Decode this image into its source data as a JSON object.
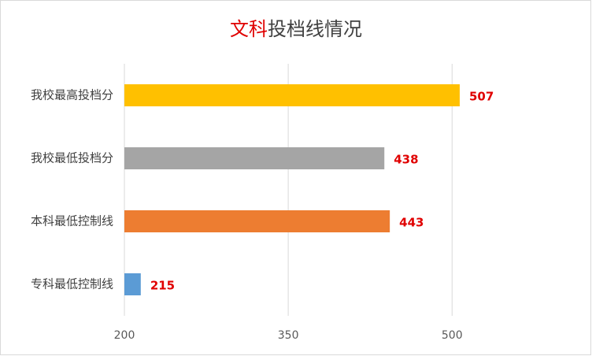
{
  "chart_data": {
    "type": "hbar",
    "title": [
      {
        "text": "文科",
        "color": "#e00000"
      },
      {
        "text": "投档线情况",
        "color": "#404040"
      }
    ],
    "categories": [
      "我校最高投档分",
      "我校最低投档分",
      "本科最低控制线",
      "专科最低控制线"
    ],
    "values": [
      507,
      438,
      443,
      215
    ],
    "colors": [
      "#ffc000",
      "#a5a5a5",
      "#ed7d31",
      "#5b9bd5"
    ],
    "xlim": [
      200,
      600
    ],
    "xticks": [
      200,
      350,
      500
    ],
    "grid": true
  }
}
